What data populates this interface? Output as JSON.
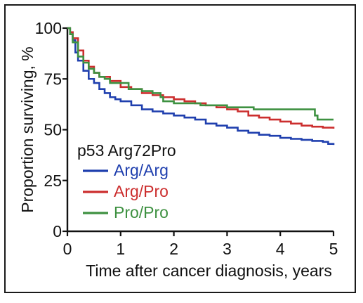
{
  "chart_data": {
    "type": "line",
    "step": true,
    "xlabel": "Time after cancer diagnosis, years",
    "ylabel": "Proportion surviving, %",
    "xlim": [
      0,
      5
    ],
    "ylim": [
      0,
      100
    ],
    "x_ticks": [
      0,
      1,
      2,
      3,
      4,
      5
    ],
    "y_ticks": [
      0,
      25,
      50,
      75,
      100
    ],
    "grid": false,
    "legend": {
      "title": "p53 Arg72Pro",
      "placement": "lower-left"
    },
    "series": [
      {
        "name": "Arg/Arg",
        "color": "#1f3fae",
        "points": [
          [
            0,
            100
          ],
          [
            0.05,
            98
          ],
          [
            0.1,
            94
          ],
          [
            0.15,
            88
          ],
          [
            0.2,
            84
          ],
          [
            0.3,
            79
          ],
          [
            0.4,
            75
          ],
          [
            0.5,
            73
          ],
          [
            0.6,
            70
          ],
          [
            0.7,
            68
          ],
          [
            0.8,
            66
          ],
          [
            0.9,
            65
          ],
          [
            1.0,
            64
          ],
          [
            1.2,
            62
          ],
          [
            1.4,
            60
          ],
          [
            1.6,
            59
          ],
          [
            1.8,
            58
          ],
          [
            2.0,
            57
          ],
          [
            2.2,
            56
          ],
          [
            2.4,
            55
          ],
          [
            2.6,
            53
          ],
          [
            2.8,
            52
          ],
          [
            3.0,
            51
          ],
          [
            3.2,
            49.5
          ],
          [
            3.4,
            48.5
          ],
          [
            3.6,
            47.5
          ],
          [
            3.8,
            47
          ],
          [
            4.0,
            46
          ],
          [
            4.2,
            45.5
          ],
          [
            4.4,
            45
          ],
          [
            4.6,
            44.5
          ],
          [
            4.8,
            44
          ],
          [
            4.9,
            43
          ],
          [
            5.0,
            42.5
          ]
        ]
      },
      {
        "name": "Arg/Pro",
        "color": "#cc2e2e",
        "points": [
          [
            0,
            100
          ],
          [
            0.05,
            98
          ],
          [
            0.1,
            95
          ],
          [
            0.2,
            89
          ],
          [
            0.3,
            84
          ],
          [
            0.4,
            81
          ],
          [
            0.5,
            78
          ],
          [
            0.6,
            76
          ],
          [
            0.8,
            74
          ],
          [
            1.0,
            71
          ],
          [
            1.2,
            70
          ],
          [
            1.4,
            68
          ],
          [
            1.6,
            67
          ],
          [
            1.8,
            66
          ],
          [
            2.0,
            65
          ],
          [
            2.2,
            64
          ],
          [
            2.4,
            63
          ],
          [
            2.6,
            62
          ],
          [
            2.8,
            61
          ],
          [
            3.0,
            60
          ],
          [
            3.2,
            59
          ],
          [
            3.4,
            57
          ],
          [
            3.6,
            56
          ],
          [
            3.8,
            55
          ],
          [
            4.0,
            54
          ],
          [
            4.2,
            53
          ],
          [
            4.4,
            52
          ],
          [
            4.6,
            51.5
          ],
          [
            4.8,
            51
          ],
          [
            5.0,
            50.5
          ]
        ]
      },
      {
        "name": "Pro/Pro",
        "color": "#3e9141",
        "points": [
          [
            0,
            100
          ],
          [
            0.05,
            97
          ],
          [
            0.1,
            93
          ],
          [
            0.2,
            86
          ],
          [
            0.3,
            83
          ],
          [
            0.4,
            80
          ],
          [
            0.5,
            78
          ],
          [
            0.6,
            76
          ],
          [
            0.7,
            75
          ],
          [
            0.8,
            73
          ],
          [
            1.0,
            73
          ],
          [
            1.1,
            73
          ],
          [
            1.15,
            70
          ],
          [
            1.4,
            69
          ],
          [
            1.6,
            68
          ],
          [
            1.75,
            66
          ],
          [
            1.8,
            64
          ],
          [
            2.0,
            63
          ],
          [
            2.5,
            62
          ],
          [
            3.0,
            61
          ],
          [
            3.4,
            61
          ],
          [
            3.5,
            60
          ],
          [
            4.6,
            60
          ],
          [
            4.65,
            57
          ],
          [
            4.7,
            55
          ],
          [
            5.0,
            55
          ]
        ]
      }
    ]
  }
}
